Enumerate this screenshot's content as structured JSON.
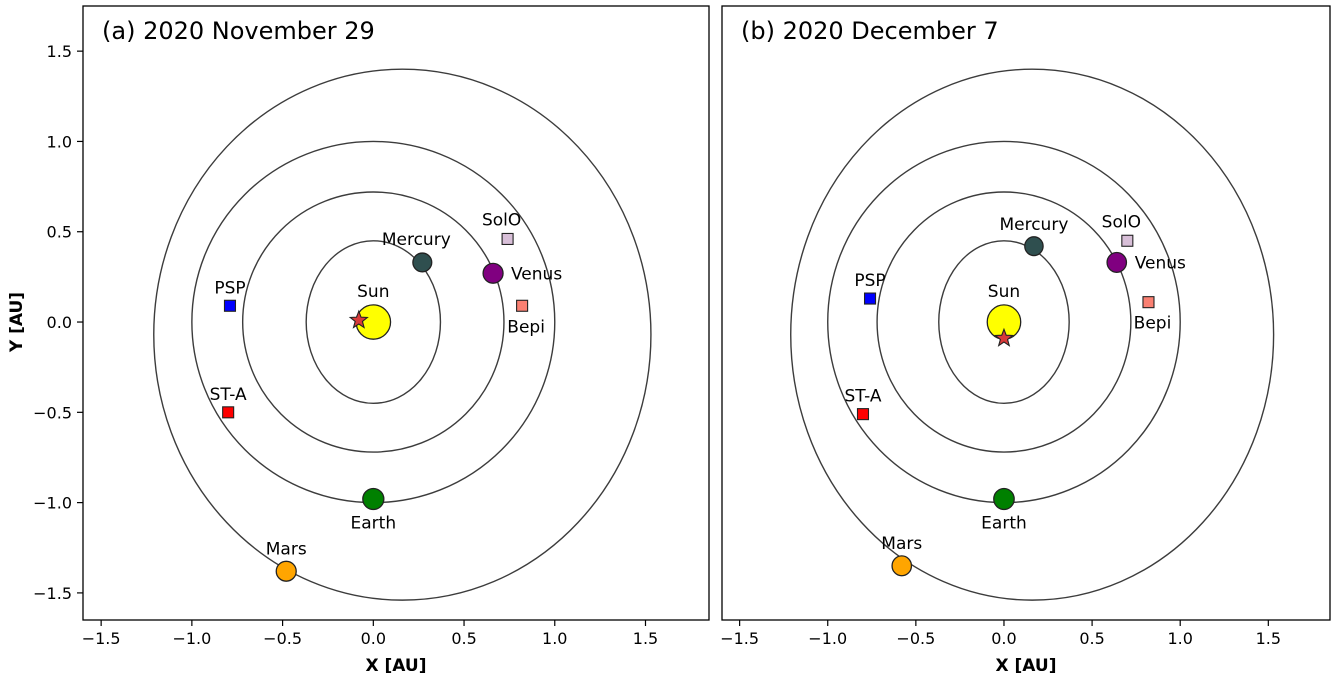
{
  "chart_data": [
    {
      "type": "scatter",
      "title": "(a) 2020 November 29",
      "xlabel": "X [AU]",
      "ylabel": "Y [AU]",
      "xlim": [
        -1.6,
        1.85
      ],
      "ylim": [
        -1.65,
        1.75
      ],
      "xticks": [
        -1.5,
        -1.0,
        -0.5,
        0.0,
        0.5,
        1.0,
        1.5
      ],
      "yticks": [
        -1.5,
        -1.0,
        -0.5,
        0.0,
        0.5,
        1.0,
        1.5
      ],
      "xtick_labels": [
        "−1.5",
        "−1.0",
        "−0.5",
        "0.0",
        "0.5",
        "1.0",
        "1.5"
      ],
      "ytick_labels": [
        "−1.5",
        "−1.0",
        "−0.5",
        "0.0",
        "0.5",
        "1.0",
        "1.5"
      ],
      "show_ylabel": true,
      "orbits": [
        {
          "name": "Mercury orbit",
          "cx": 0.0,
          "cy": 0.0,
          "rx": 0.37,
          "ry": 0.45
        },
        {
          "name": "Venus orbit",
          "cx": 0.0,
          "cy": 0.0,
          "rx": 0.72,
          "ry": 0.72
        },
        {
          "name": "Earth orbit",
          "cx": 0.0,
          "cy": 0.0,
          "rx": 1.0,
          "ry": 1.0
        },
        {
          "name": "Mars orbit",
          "cx": 0.16,
          "cy": -0.07,
          "rx": 1.37,
          "ry": 1.47
        }
      ],
      "sun": {
        "label": "Sun",
        "x": 0.0,
        "y": 0.0,
        "color": "#ffff00"
      },
      "star": {
        "x": -0.08,
        "y": 0.01,
        "color": "#d93a3a"
      },
      "planets": [
        {
          "label": "Mercury",
          "x": 0.27,
          "y": 0.33,
          "color": "#2f4f4f",
          "r": 0.052,
          "label_pos": "above-left"
        },
        {
          "label": "Venus",
          "x": 0.66,
          "y": 0.27,
          "color": "#800080",
          "r": 0.055,
          "label_pos": "right"
        },
        {
          "label": "Earth",
          "x": 0.0,
          "y": -0.98,
          "color": "#008000",
          "r": 0.058,
          "label_pos": "below"
        },
        {
          "label": "Mars",
          "x": -0.48,
          "y": -1.38,
          "color": "#ffa500",
          "r": 0.055,
          "label_pos": "above"
        }
      ],
      "spacecraft": [
        {
          "label": "PSP",
          "x": -0.79,
          "y": 0.09,
          "color": "#0000ff",
          "label_pos": "above"
        },
        {
          "label": "ST-A",
          "x": -0.8,
          "y": -0.5,
          "color": "#ff0000",
          "label_pos": "above"
        },
        {
          "label": "SolO",
          "x": 0.74,
          "y": 0.46,
          "color": "#d8bfd8",
          "label_pos": "above-left"
        },
        {
          "label": "Bepi",
          "x": 0.82,
          "y": 0.09,
          "color": "#fa8072",
          "label_pos": "below"
        }
      ]
    },
    {
      "type": "scatter",
      "title": "(b) 2020 December 7",
      "xlabel": "X [AU]",
      "ylabel": "",
      "xlim": [
        -1.6,
        1.85
      ],
      "ylim": [
        -1.65,
        1.75
      ],
      "xticks": [
        -1.5,
        -1.0,
        -0.5,
        0.0,
        0.5,
        1.0,
        1.5
      ],
      "yticks": [],
      "xtick_labels": [
        "−1.5",
        "−1.0",
        "−0.5",
        "0.0",
        "0.5",
        "1.0",
        "1.5"
      ],
      "ytick_labels": [],
      "show_ylabel": false,
      "orbits": [
        {
          "name": "Mercury orbit",
          "cx": 0.0,
          "cy": 0.0,
          "rx": 0.37,
          "ry": 0.45
        },
        {
          "name": "Venus orbit",
          "cx": 0.0,
          "cy": 0.0,
          "rx": 0.72,
          "ry": 0.72
        },
        {
          "name": "Earth orbit",
          "cx": 0.0,
          "cy": 0.0,
          "rx": 1.0,
          "ry": 1.0
        },
        {
          "name": "Mars orbit",
          "cx": 0.16,
          "cy": -0.07,
          "rx": 1.37,
          "ry": 1.47
        }
      ],
      "sun": {
        "label": "Sun",
        "x": 0.0,
        "y": 0.0,
        "color": "#ffff00"
      },
      "star": {
        "x": 0.0,
        "y": -0.09,
        "color": "#d93a3a"
      },
      "planets": [
        {
          "label": "Mercury",
          "x": 0.17,
          "y": 0.42,
          "color": "#2f4f4f",
          "r": 0.052,
          "label_pos": "above"
        },
        {
          "label": "Venus",
          "x": 0.64,
          "y": 0.33,
          "color": "#800080",
          "r": 0.055,
          "label_pos": "right"
        },
        {
          "label": "Earth",
          "x": 0.0,
          "y": -0.98,
          "color": "#008000",
          "r": 0.058,
          "label_pos": "below"
        },
        {
          "label": "Mars",
          "x": -0.58,
          "y": -1.35,
          "color": "#ffa500",
          "r": 0.055,
          "label_pos": "above"
        }
      ],
      "spacecraft": [
        {
          "label": "PSP",
          "x": -0.76,
          "y": 0.13,
          "color": "#0000ff",
          "label_pos": "above"
        },
        {
          "label": "ST-A",
          "x": -0.8,
          "y": -0.51,
          "color": "#ff0000",
          "label_pos": "above"
        },
        {
          "label": "SolO",
          "x": 0.7,
          "y": 0.45,
          "color": "#d8bfd8",
          "label_pos": "above-left"
        },
        {
          "label": "Bepi",
          "x": 0.82,
          "y": 0.11,
          "color": "#fa8072",
          "label_pos": "below"
        }
      ]
    }
  ]
}
